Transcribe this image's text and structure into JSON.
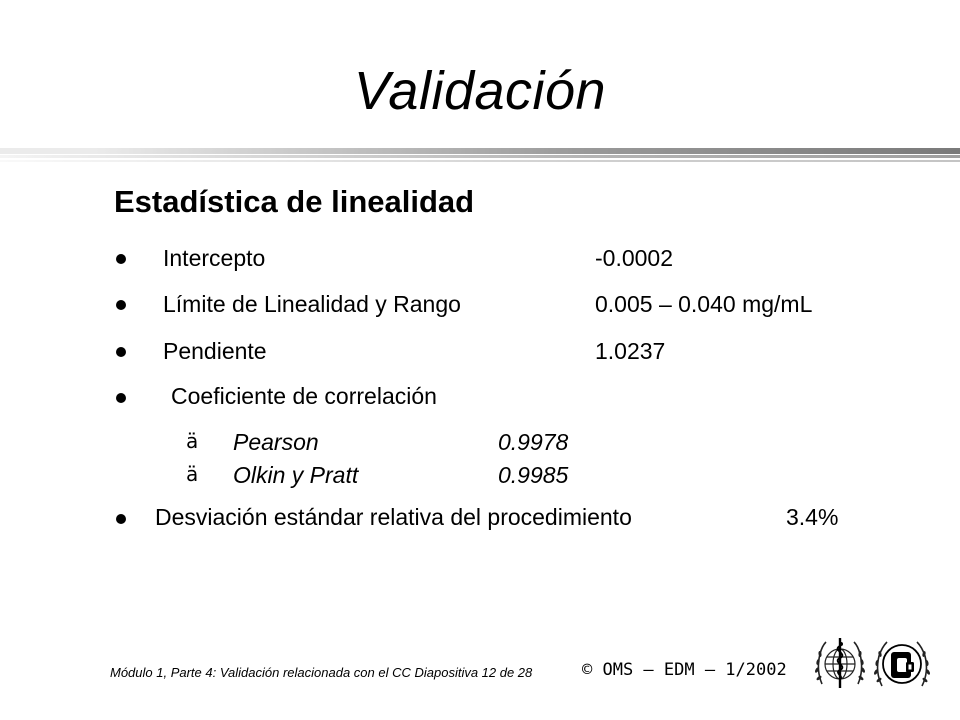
{
  "slide": {
    "title": "Validación",
    "subtitle": "Estadística de linealidad",
    "items": [
      {
        "label": "Intercepto",
        "value": "-0.0002"
      },
      {
        "label": "Límite de Linealidad y Rango",
        "value": "0.005 – 0.040 mg/mL"
      },
      {
        "label": "Pendiente",
        "value": "1.0237"
      },
      {
        "label": "Coeficiente de correlación"
      }
    ],
    "subitems": [
      {
        "marker": "ä",
        "label": "Pearson",
        "value": "0.9978"
      },
      {
        "marker": "ä",
        "label": "Olkin y Pratt",
        "value": "0.9985"
      }
    ],
    "last_item": {
      "label": "Desviación estándar relativa del procedimiento",
      "value": "3.4%"
    }
  },
  "footer": {
    "module_text": "Módulo 1, Parte 4:  Validación relacionada con el CC Diapositiva  12 de 28",
    "copyright": "© OMS – EDM – 1/2002",
    "logos": [
      "who-emblem-icon",
      "ec-emblem-icon"
    ]
  }
}
